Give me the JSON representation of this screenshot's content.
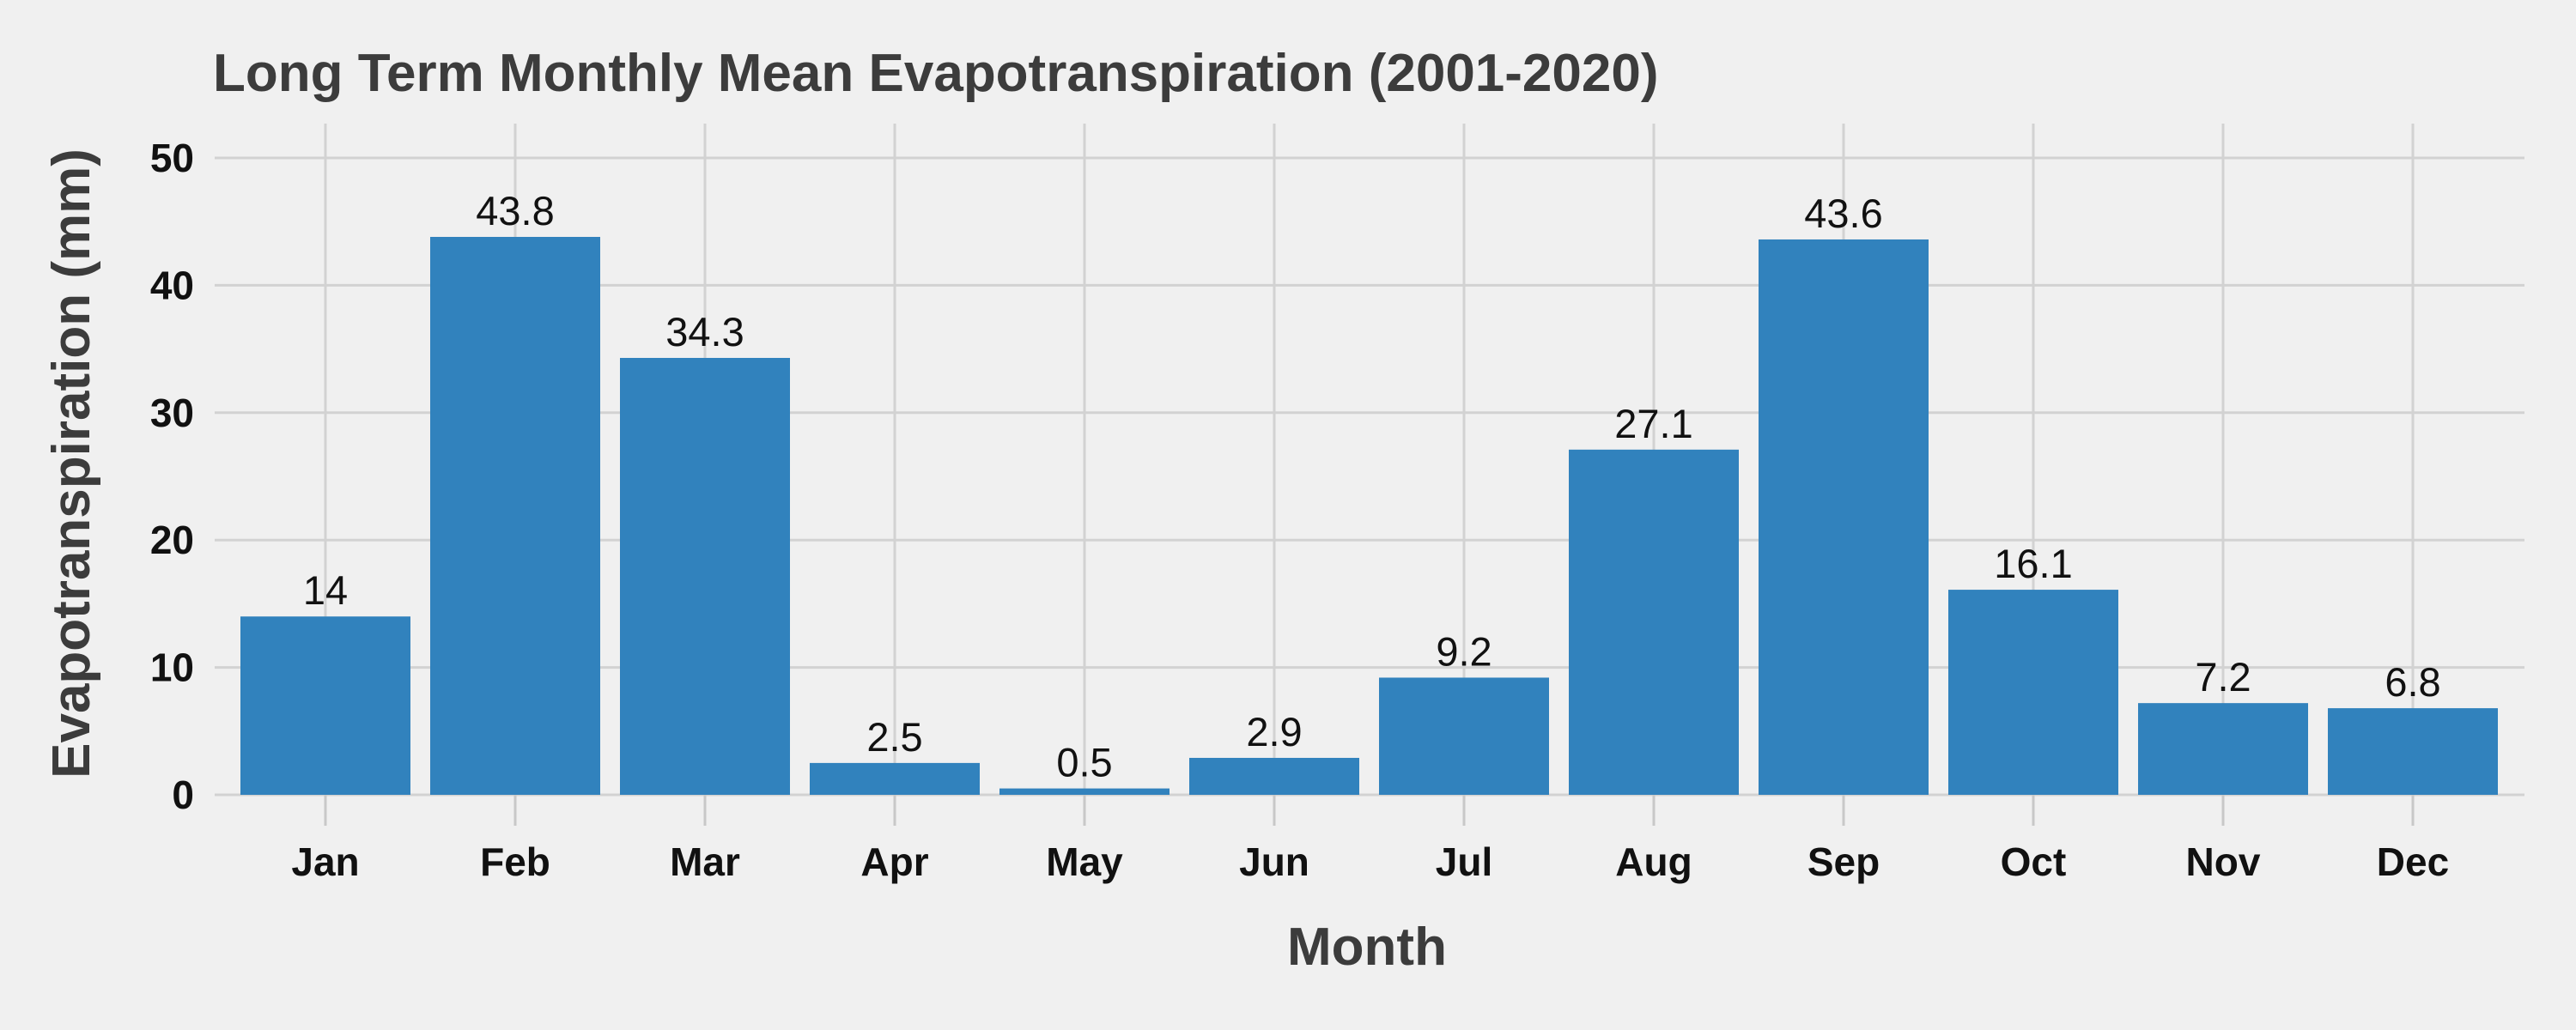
{
  "chart_data": {
    "type": "bar",
    "title": "Long Term Monthly Mean Evapotranspiration (2001-2020)",
    "xlabel": "Month",
    "ylabel": "Evapotranspiration (mm)",
    "categories": [
      "Jan",
      "Feb",
      "Mar",
      "Apr",
      "May",
      "Jun",
      "Jul",
      "Aug",
      "Sep",
      "Oct",
      "Nov",
      "Dec"
    ],
    "values": [
      14,
      43.8,
      34.3,
      2.5,
      0.5,
      2.9,
      9.2,
      27.1,
      43.6,
      16.1,
      7.2,
      6.8
    ],
    "data_labels": [
      "14",
      "43.8",
      "34.3",
      "2.5",
      "0.5",
      "2.9",
      "9.2",
      "27.1",
      "43.6",
      "16.1",
      "7.2",
      "6.8"
    ],
    "ylim": [
      0,
      50
    ],
    "yticks": [
      0,
      10,
      20,
      30,
      40,
      50
    ],
    "ytick_labels": [
      "0",
      "10",
      "20",
      "30",
      "40",
      "50"
    ],
    "grid": true,
    "legend": "none",
    "colors": {
      "bar": "#3182bd",
      "background": "#f0f0f0",
      "grid": "#d2d2d2"
    }
  }
}
